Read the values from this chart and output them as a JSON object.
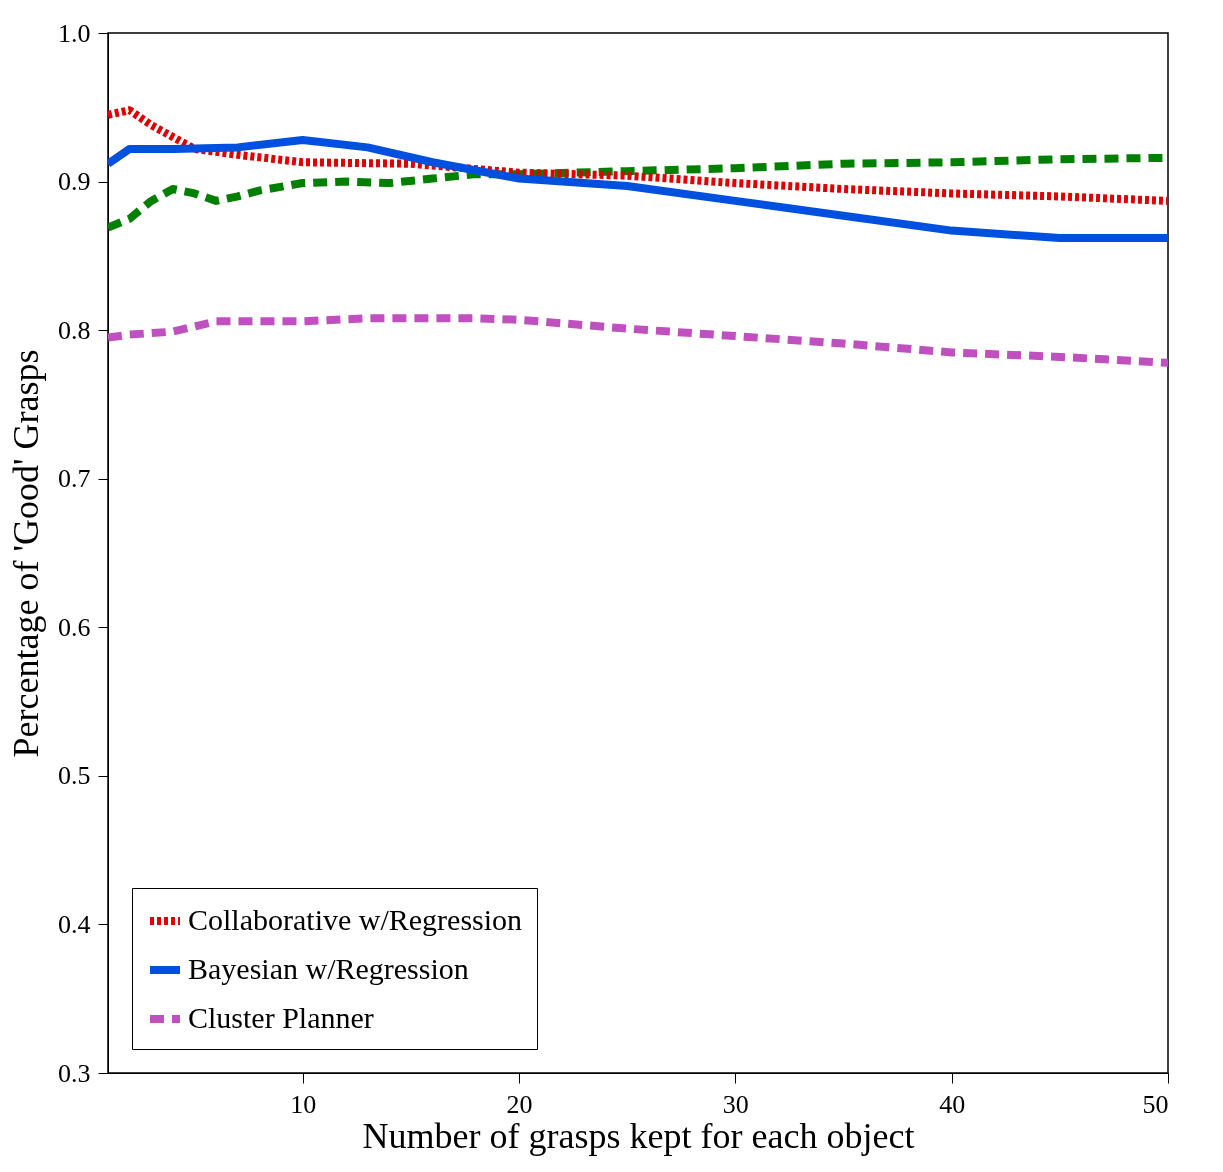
{
  "chart_data": {
    "type": "line",
    "xlabel": "Number of grasps kept for each object",
    "ylabel": "Percentage of 'Good' Grasps",
    "xlim": [
      1,
      50
    ],
    "ylim": [
      0.3,
      1.0
    ],
    "xticks": [
      10,
      20,
      30,
      40,
      50
    ],
    "yticks": [
      0.3,
      0.4,
      0.5,
      0.6,
      0.7,
      0.8,
      0.9,
      {
        "value": 1,
        "label": "1.0"
      }
    ],
    "legend": "bottom left",
    "grid": false,
    "series": [
      {
        "color": "#007f00",
        "line_style": "dashed",
        "x": [
          1,
          2,
          3,
          4,
          5,
          6,
          7,
          8,
          10,
          12,
          14,
          16,
          18,
          20,
          25,
          30,
          35,
          40,
          45,
          50
        ],
        "values": [
          0.869,
          0.875,
          0.887,
          0.895,
          0.892,
          0.887,
          0.89,
          0.894,
          0.899,
          0.9,
          0.899,
          0.902,
          0.905,
          0.905,
          0.907,
          0.909,
          0.912,
          0.913,
          0.915,
          0.916
        ]
      },
      {
        "name": "Collaborative w/Regression",
        "color": "#e00000",
        "line_style": "dotted",
        "x": [
          1,
          2,
          3,
          4,
          5,
          7,
          10,
          15,
          20,
          25,
          30,
          35,
          40,
          45,
          50
        ],
        "values": [
          0.945,
          0.948,
          0.938,
          0.93,
          0.922,
          0.918,
          0.913,
          0.912,
          0.906,
          0.904,
          0.899,
          0.895,
          0.892,
          0.89,
          0.887
        ]
      },
      {
        "name": "Bayesian w/Regression",
        "color": "#0050e0",
        "line_style": "solid",
        "x": [
          1,
          2,
          4,
          7,
          10,
          13,
          16,
          20,
          25,
          30,
          35,
          40,
          45,
          50
        ],
        "values": [
          0.912,
          0.922,
          0.922,
          0.923,
          0.928,
          0.923,
          0.913,
          0.902,
          0.897,
          0.887,
          0.877,
          0.867,
          0.862,
          0.862
        ]
      },
      {
        "name": "Cluster Planner",
        "color": "#c050c0",
        "line_style": "dashed",
        "x": [
          1,
          2,
          4,
          6,
          10,
          13,
          18,
          20,
          25,
          30,
          35,
          40,
          45,
          50
        ],
        "values": [
          0.795,
          0.797,
          0.799,
          0.806,
          0.806,
          0.808,
          0.808,
          0.807,
          0.801,
          0.796,
          0.791,
          0.785,
          0.782,
          0.778
        ]
      }
    ]
  }
}
